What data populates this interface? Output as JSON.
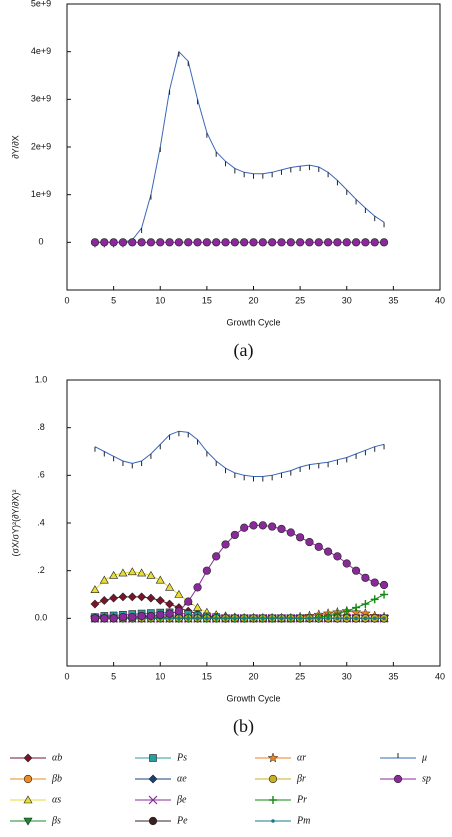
{
  "chart_data": [
    {
      "type": "line",
      "xlabel": "Growth Cycle",
      "ylabel": "∂Y/∂X",
      "caption": "(a)",
      "x": [
        3,
        4,
        5,
        6,
        7,
        8,
        9,
        10,
        11,
        12,
        13,
        14,
        15,
        16,
        17,
        18,
        19,
        20,
        21,
        22,
        23,
        24,
        25,
        26,
        27,
        28,
        29,
        30,
        31,
        32,
        33,
        34
      ],
      "xlim": [
        0,
        40
      ],
      "xticks": [
        0,
        5,
        10,
        15,
        20,
        25,
        30,
        35,
        40
      ],
      "ylim": [
        -1000000000,
        5000000000
      ],
      "yticks": [
        0,
        {
          "value": 1000000000,
          "label": "1e+9"
        },
        {
          "value": 2000000000,
          "label": "2e+9"
        },
        {
          "value": 3000000000,
          "label": "3e+9"
        },
        {
          "value": 4000000000,
          "label": "4e+9"
        },
        {
          "value": 5000000000,
          "label": "5e+9"
        }
      ],
      "series": [
        {
          "name": "μ",
          "color": "#3a68b8",
          "marker": "tick",
          "values": [
            0,
            0,
            0,
            0,
            50000000,
            300000000,
            1000000000,
            2000000000,
            3200000000,
            4000000000,
            3800000000,
            3000000000,
            2300000000,
            1900000000,
            1700000000,
            1550000000,
            1470000000,
            1440000000,
            1440000000,
            1470000000,
            1520000000,
            1570000000,
            1600000000,
            1620000000,
            1580000000,
            1470000000,
            1300000000,
            1100000000,
            900000000,
            720000000,
            550000000,
            420000000
          ]
        },
        {
          "name": "sp",
          "color": "#8a2a9a",
          "marker": "octagon",
          "values": [
            0,
            0,
            0,
            0,
            0,
            0,
            0,
            0,
            0,
            0,
            0,
            0,
            0,
            0,
            0,
            0,
            0,
            0,
            0,
            0,
            0,
            0,
            0,
            0,
            0,
            0,
            0,
            0,
            0,
            0,
            0,
            0
          ]
        }
      ]
    },
    {
      "type": "line",
      "xlabel": "Growth Cycle",
      "ylabel": "(σX/σY)²(∂Y/∂X)²",
      "caption": "(b)",
      "legend": "bottom",
      "x": [
        3,
        4,
        5,
        6,
        7,
        8,
        9,
        10,
        11,
        12,
        13,
        14,
        15,
        16,
        17,
        18,
        19,
        20,
        21,
        22,
        23,
        24,
        25,
        26,
        27,
        28,
        29,
        30,
        31,
        32,
        33,
        34
      ],
      "xlim": [
        0,
        40
      ],
      "xticks": [
        0,
        5,
        10,
        15,
        20,
        25,
        30,
        35,
        40
      ],
      "ylim": [
        -0.2,
        1.0
      ],
      "yticks": [
        {
          "value": 0,
          "label": "0.0"
        },
        {
          "value": 0.2,
          "label": ".2"
        },
        {
          "value": 0.4,
          "label": ".4"
        },
        {
          "value": 0.6,
          "label": ".6"
        },
        {
          "value": 0.8,
          "label": ".8"
        },
        {
          "value": 1.0,
          "label": "1.0"
        }
      ],
      "series": [
        {
          "name": "αb",
          "color": "#7a1428",
          "marker": "diamond",
          "values": [
            0.06,
            0.075,
            0.085,
            0.09,
            0.09,
            0.09,
            0.085,
            0.075,
            0.06,
            0.045,
            0.03,
            0.02,
            0.01,
            0.005,
            0,
            0,
            0,
            0,
            0,
            0,
            0,
            0,
            0,
            0,
            0,
            0,
            0,
            0,
            0,
            0,
            0,
            0
          ]
        },
        {
          "name": "βb",
          "color": "#f08a20",
          "marker": "octagon",
          "values": [
            0,
            0,
            0,
            0,
            0,
            0,
            0,
            0,
            0,
            0,
            0,
            0,
            0,
            0,
            0,
            0,
            0,
            0,
            0,
            0,
            0,
            0,
            0,
            0,
            0,
            0,
            0,
            0,
            0,
            0,
            0,
            0
          ]
        },
        {
          "name": "αs",
          "color": "#e6dc3a",
          "marker": "triangle",
          "values": [
            0.12,
            0.16,
            0.18,
            0.19,
            0.195,
            0.19,
            0.18,
            0.16,
            0.13,
            0.1,
            0.07,
            0.045,
            0.025,
            0.015,
            0.01,
            0.005,
            0,
            0,
            0,
            0,
            0,
            0,
            0,
            0,
            0,
            0,
            0,
            0,
            0,
            0,
            0,
            0
          ]
        },
        {
          "name": "βs",
          "color": "#1a8a2a",
          "marker": "triangle-down",
          "values": [
            0,
            0,
            0,
            0,
            0,
            0,
            0,
            0,
            0,
            0,
            0,
            0,
            0,
            0,
            0,
            0,
            0,
            0,
            0,
            0,
            0,
            0,
            0,
            0,
            0,
            0,
            0,
            0,
            0,
            0,
            0,
            0
          ]
        },
        {
          "name": "Ps",
          "color": "#2a9d9d",
          "marker": "square",
          "values": [
            0.005,
            0.01,
            0.012,
            0.015,
            0.018,
            0.02,
            0.022,
            0.024,
            0.025,
            0.022,
            0.018,
            0.012,
            0.008,
            0.005,
            0,
            0,
            0,
            0,
            0,
            0,
            0,
            0,
            0,
            0,
            0,
            0,
            0,
            0,
            0,
            0,
            0,
            0
          ]
        },
        {
          "name": "αe",
          "color": "#16407e",
          "marker": "diamond",
          "values": [
            0,
            0,
            0,
            0,
            0,
            0,
            0,
            0,
            0,
            0,
            0,
            0,
            0,
            0,
            0,
            0,
            0,
            0,
            0,
            0,
            0,
            0,
            0,
            0,
            0,
            0,
            0,
            0,
            0,
            0,
            0,
            0
          ]
        },
        {
          "name": "βe",
          "color": "#8a2a9a",
          "marker": "x",
          "values": [
            0,
            0,
            0,
            0,
            0,
            0,
            0,
            0,
            0,
            0,
            0,
            0,
            0,
            0,
            0,
            0,
            0,
            0,
            0,
            0,
            0,
            0,
            0,
            0,
            0,
            0,
            0,
            0,
            0,
            0,
            0,
            0
          ]
        },
        {
          "name": "Pe",
          "color": "#3a2020",
          "marker": "octagon",
          "values": [
            0,
            0,
            0,
            0,
            0,
            0,
            0,
            0,
            0,
            0,
            0,
            0,
            0,
            0,
            0,
            0,
            0,
            0,
            0,
            0,
            0,
            0,
            0,
            0,
            0,
            0,
            0,
            0,
            0,
            0,
            0,
            0
          ]
        },
        {
          "name": "αr",
          "color": "#f08020",
          "marker": "star",
          "values": [
            0,
            0,
            0,
            0,
            0,
            0,
            0,
            0,
            0,
            0,
            0,
            0,
            0,
            0,
            0,
            0,
            0,
            0,
            0,
            0,
            0,
            0,
            0.005,
            0.01,
            0.015,
            0.02,
            0.025,
            0.03,
            0.025,
            0.02,
            0.01,
            0.005
          ]
        },
        {
          "name": "βr",
          "color": "#c8b020",
          "marker": "octagon",
          "values": [
            0,
            0,
            0,
            0,
            0,
            0,
            0,
            0,
            0,
            0,
            0,
            0,
            0,
            0,
            0,
            0,
            0,
            0,
            0,
            0,
            0,
            0,
            0,
            0,
            0,
            0,
            0,
            0,
            0,
            0,
            0,
            0
          ]
        },
        {
          "name": "Pr",
          "color": "#108a10",
          "marker": "plus",
          "values": [
            0,
            0,
            0,
            0,
            0,
            0,
            0,
            0,
            0,
            0,
            0,
            0,
            0,
            0,
            0,
            0,
            0,
            0,
            0,
            0,
            0,
            0,
            0,
            0,
            0.005,
            0.01,
            0.02,
            0.03,
            0.045,
            0.06,
            0.08,
            0.1
          ]
        },
        {
          "name": "Pm",
          "color": "#1a7a8a",
          "marker": "dot",
          "values": [
            0,
            0,
            0,
            0,
            0,
            0,
            0,
            0,
            0,
            0,
            0,
            0,
            0,
            0,
            0,
            0,
            0,
            0,
            0,
            0,
            0,
            0,
            0,
            0,
            0,
            0,
            0,
            0,
            0,
            0,
            0,
            0
          ]
        },
        {
          "name": "μ",
          "color": "#3a68b8",
          "marker": "tick",
          "values": [
            0.72,
            0.7,
            0.68,
            0.66,
            0.65,
            0.66,
            0.69,
            0.73,
            0.77,
            0.785,
            0.78,
            0.75,
            0.7,
            0.66,
            0.63,
            0.61,
            0.6,
            0.595,
            0.595,
            0.6,
            0.61,
            0.62,
            0.635,
            0.645,
            0.65,
            0.655,
            0.665,
            0.675,
            0.69,
            0.705,
            0.72,
            0.73
          ]
        },
        {
          "name": "sp",
          "color": "#8a2a9a",
          "marker": "octagon",
          "values": [
            0,
            0,
            0,
            0.005,
            0.005,
            0.01,
            0.01,
            0.015,
            0.02,
            0.03,
            0.07,
            0.13,
            0.2,
            0.26,
            0.31,
            0.35,
            0.38,
            0.39,
            0.39,
            0.385,
            0.375,
            0.36,
            0.34,
            0.32,
            0.3,
            0.28,
            0.26,
            0.23,
            0.2,
            0.17,
            0.15,
            0.14
          ]
        }
      ]
    }
  ]
}
